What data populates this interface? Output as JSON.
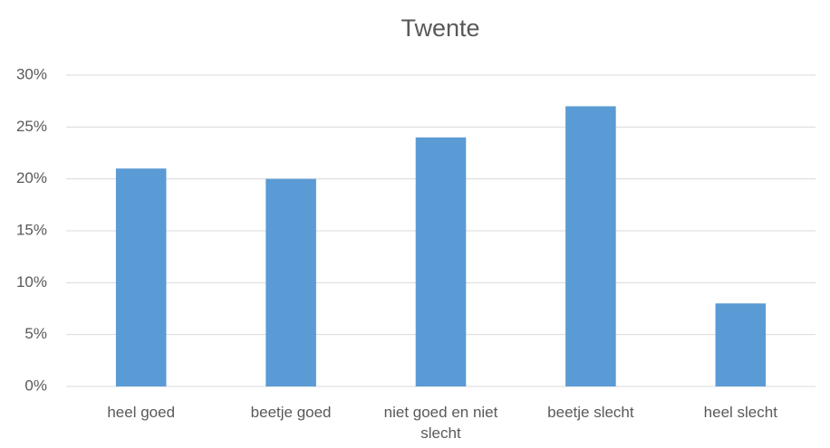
{
  "chart_data": {
    "type": "bar",
    "title": "Twente",
    "categories": [
      "heel goed",
      "beetje goed",
      "niet goed en niet slecht",
      "beetje slecht",
      "heel slecht"
    ],
    "values": [
      21,
      20,
      24,
      27,
      8
    ],
    "color": "#5b9bd5",
    "ylim": [
      0,
      30
    ],
    "yticks": [
      {
        "value": 0,
        "label": "0%"
      },
      {
        "value": 5,
        "label": "5%"
      },
      {
        "value": 10,
        "label": "10%"
      },
      {
        "value": 15,
        "label": "15%"
      },
      {
        "value": 20,
        "label": "20%"
      },
      {
        "value": 25,
        "label": "25%"
      },
      {
        "value": 30,
        "label": "30%"
      }
    ],
    "grid": true
  }
}
